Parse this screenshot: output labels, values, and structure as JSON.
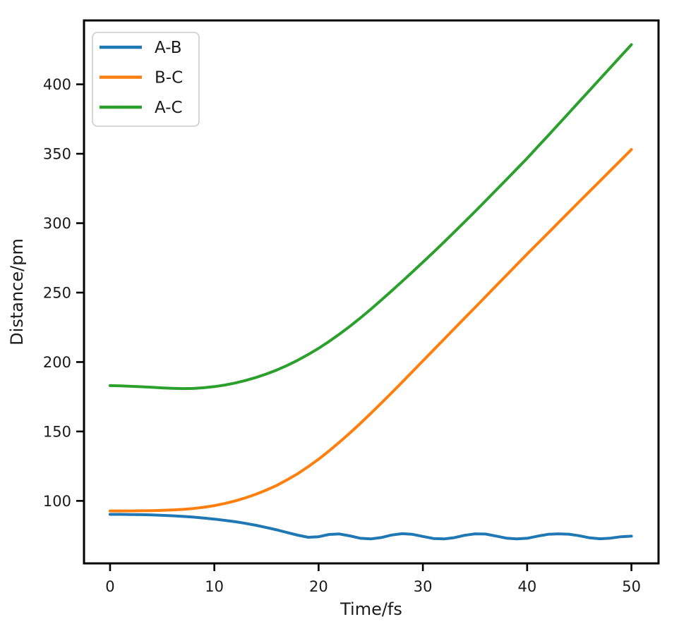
{
  "chart_data": {
    "type": "line",
    "title": "",
    "xlabel": "Time/fs",
    "ylabel": "Distance/pm",
    "xlim": [
      -2.5,
      52.6
    ],
    "ylim": [
      55,
      446
    ],
    "x_ticks": [
      0,
      10,
      20,
      30,
      40,
      50
    ],
    "y_ticks": [
      100,
      150,
      200,
      250,
      300,
      350,
      400
    ],
    "grid": false,
    "legend": {
      "position": "upper left",
      "entries": [
        "A-B",
        "B-C",
        "A-C"
      ]
    },
    "colors": {
      "axis": "#000000",
      "text": "#1a1a1a",
      "legend_border": "#cccccc",
      "legend_bg": "#ffffff"
    },
    "x": [
      0,
      1,
      2,
      3,
      4,
      5,
      6,
      7,
      8,
      9,
      10,
      11,
      12,
      13,
      14,
      15,
      16,
      17,
      18,
      19,
      20,
      21,
      22,
      23,
      24,
      25,
      26,
      27,
      28,
      29,
      30,
      31,
      32,
      33,
      34,
      35,
      36,
      37,
      38,
      39,
      40,
      41,
      42,
      43,
      44,
      45,
      46,
      47,
      48,
      49,
      50
    ],
    "series": [
      {
        "name": "A-B",
        "color": "#1f77b4",
        "values": [
          90.3,
          90.3,
          90.2,
          90.1,
          89.9,
          89.6,
          89.3,
          88.8,
          88.3,
          87.6,
          86.9,
          86.0,
          85.0,
          83.8,
          82.4,
          80.8,
          79.1,
          77.2,
          75.3,
          73.8,
          74.2,
          75.8,
          76.2,
          74.8,
          73.1,
          72.6,
          73.6,
          75.4,
          76.4,
          75.9,
          74.4,
          72.9,
          72.6,
          73.5,
          75.2,
          76.3,
          76.1,
          74.7,
          73.2,
          72.6,
          73.1,
          74.6,
          75.9,
          76.3,
          76.0,
          74.9,
          73.4,
          72.7,
          73.2,
          74.2,
          74.6
        ]
      },
      {
        "name": "B-C",
        "color": "#ff7f0e",
        "values": [
          92.8,
          92.8,
          92.8,
          92.9,
          93.0,
          93.2,
          93.5,
          93.9,
          94.5,
          95.4,
          96.6,
          98.1,
          100.0,
          102.2,
          104.8,
          107.8,
          111.2,
          115.2,
          119.6,
          124.6,
          130.0,
          136.0,
          142.3,
          148.9,
          155.8,
          163.0,
          170.3,
          177.8,
          185.4,
          193.1,
          200.8,
          208.5,
          216.2,
          223.9,
          231.6,
          239.3,
          247.0,
          254.7,
          262.4,
          270.1,
          277.8,
          285.3,
          292.8,
          300.4,
          308.0,
          315.5,
          323.0,
          330.5,
          338.0,
          345.5,
          353.0
        ]
      },
      {
        "name": "A-C",
        "color": "#2ca02c",
        "values": [
          183.0,
          182.8,
          182.5,
          182.2,
          181.8,
          181.4,
          181.1,
          180.9,
          181.0,
          181.5,
          182.3,
          183.4,
          184.9,
          186.7,
          188.9,
          191.4,
          194.3,
          197.6,
          201.3,
          205.4,
          209.9,
          214.8,
          220.1,
          225.7,
          231.7,
          238.0,
          244.5,
          251.2,
          258.0,
          264.9,
          271.9,
          279.0,
          286.2,
          293.5,
          300.9,
          308.4,
          316.0,
          323.6,
          331.3,
          339.0,
          346.8,
          354.9,
          363.0,
          371.2,
          379.4,
          387.6,
          395.8,
          404.0,
          412.2,
          420.4,
          428.6
        ]
      }
    ]
  }
}
